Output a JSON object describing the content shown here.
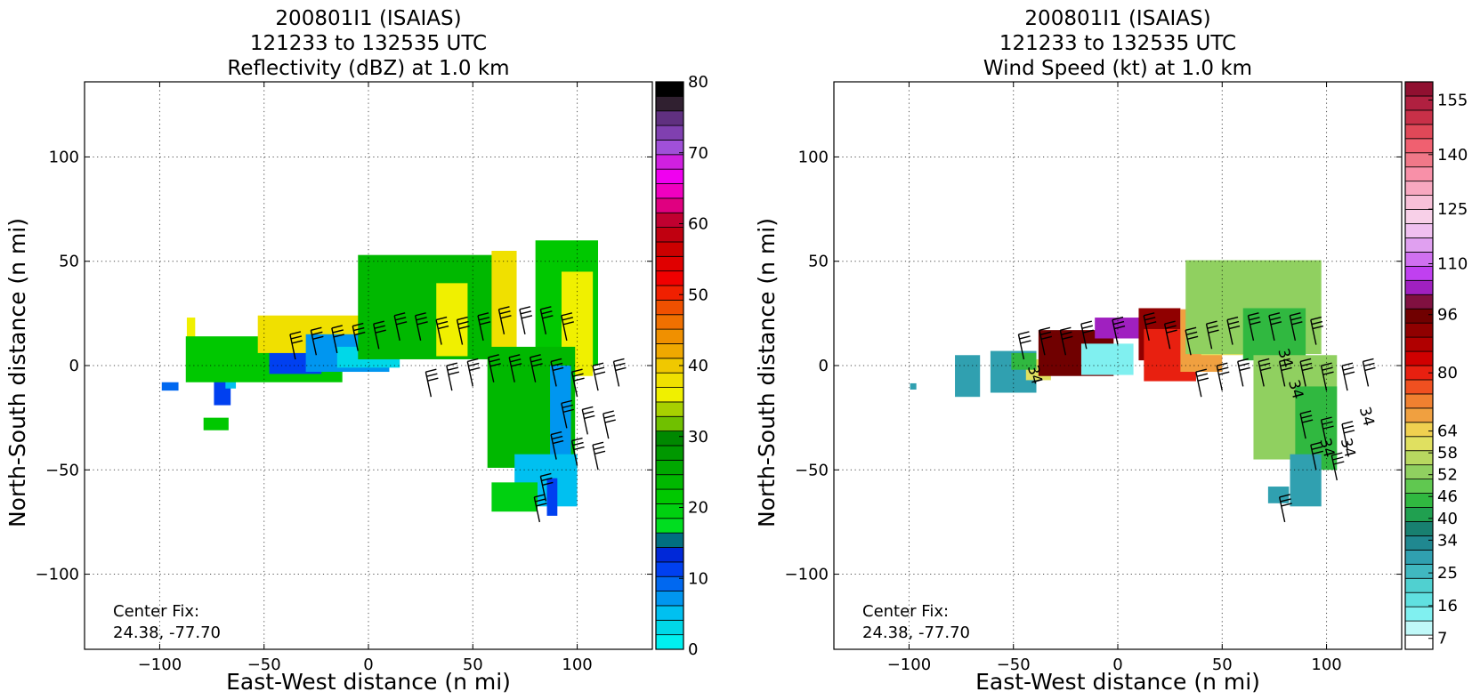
{
  "chart_data": [
    {
      "type": "heatmap",
      "title_lines": [
        "200801I1 (ISAIAS)",
        "121233 to 132535 UTC",
        "Reflectivity (dBZ) at 1.0 km"
      ],
      "xlabel": "East-West distance (n mi)",
      "ylabel": "North-South distance (n mi)",
      "xlim": [
        -136,
        136
      ],
      "ylim": [
        -136,
        136
      ],
      "xticks": [
        -100,
        -50,
        0,
        50,
        100
      ],
      "yticks": [
        -100,
        -50,
        0,
        50,
        100
      ],
      "grid": true,
      "annotation_lines": [
        "Center Fix:",
        "24.38, -77.70"
      ],
      "colorbar": {
        "min": 0,
        "max": 80,
        "tick_labels": [
          "0",
          "10",
          "20",
          "30",
          "40",
          "50",
          "60",
          "70",
          "80"
        ],
        "colors": [
          "#00f0f0",
          "#00d8e8",
          "#00c0f0",
          "#0096f0",
          "#0068f0",
          "#0040f0",
          "#0028d8",
          "#006f80",
          "#00dd20",
          "#00d010",
          "#00c800",
          "#00b800",
          "#00a800",
          "#009800",
          "#008800",
          "#70c000",
          "#a8d000",
          "#f0f000",
          "#f0e000",
          "#f0c800",
          "#f0a800",
          "#f09000",
          "#f07000",
          "#f05000",
          "#f02000",
          "#f00000",
          "#e00000",
          "#cc0000",
          "#c00010",
          "#c00030",
          "#e00080",
          "#f000c0",
          "#f000f0",
          "#d020e0",
          "#a050d8",
          "#8040b0",
          "#603080",
          "#302030",
          "#000000"
        ]
      },
      "echo_regions": [
        {
          "x": -95,
          "y": -10,
          "w": 8,
          "h": 4,
          "color": "#0068f0"
        },
        {
          "x": -85,
          "y": 17,
          "w": 4,
          "h": 12,
          "color": "#f0f000"
        },
        {
          "x": -73,
          "y": -28,
          "w": 12,
          "h": 6,
          "color": "#00c800"
        },
        {
          "x": -70,
          "y": -5,
          "w": 8,
          "h": 28,
          "color": "#0040f0"
        },
        {
          "x": -66,
          "y": 0,
          "w": 5,
          "h": 22,
          "color": "#00c0f0"
        },
        {
          "x": -50,
          "y": 3,
          "w": 75,
          "h": 22,
          "color": "#00c800"
        },
        {
          "x": -35,
          "y": 2,
          "w": 25,
          "h": 12,
          "color": "#0040f0"
        },
        {
          "x": -18,
          "y": 15,
          "w": 70,
          "h": 18,
          "color": "#f0e000"
        },
        {
          "x": -10,
          "y": 6,
          "w": 40,
          "h": 18,
          "color": "#0096f0"
        },
        {
          "x": 0,
          "y": 4,
          "w": 30,
          "h": 10,
          "color": "#00d8e8"
        },
        {
          "x": 30,
          "y": 28,
          "w": 70,
          "h": 50,
          "color": "#00b800"
        },
        {
          "x": 40,
          "y": 22,
          "w": 15,
          "h": 35,
          "color": "#f0f000"
        },
        {
          "x": 65,
          "y": 30,
          "w": 12,
          "h": 50,
          "color": "#f0e000"
        },
        {
          "x": 95,
          "y": 30,
          "w": 30,
          "h": 60,
          "color": "#00c800"
        },
        {
          "x": 100,
          "y": 20,
          "w": 15,
          "h": 50,
          "color": "#f0f000"
        },
        {
          "x": 78,
          "y": -20,
          "w": 42,
          "h": 58,
          "color": "#00b800"
        },
        {
          "x": 92,
          "y": -25,
          "w": 10,
          "h": 50,
          "color": "#0096f0"
        },
        {
          "x": 85,
          "y": -55,
          "w": 30,
          "h": 25,
          "color": "#00c0f0"
        },
        {
          "x": 70,
          "y": -63,
          "w": 22,
          "h": 14,
          "color": "#00d010"
        },
        {
          "x": 88,
          "y": -63,
          "w": 5,
          "h": 18,
          "color": "#0040f0"
        }
      ],
      "barbs": [
        {
          "x": -35,
          "y": 3
        },
        {
          "x": -25,
          "y": 5
        },
        {
          "x": -15,
          "y": 6
        },
        {
          "x": -5,
          "y": 7
        },
        {
          "x": 5,
          "y": 8
        },
        {
          "x": 15,
          "y": 12
        },
        {
          "x": 25,
          "y": 12
        },
        {
          "x": 35,
          "y": 10
        },
        {
          "x": 45,
          "y": 10
        },
        {
          "x": 55,
          "y": 12
        },
        {
          "x": 65,
          "y": 15
        },
        {
          "x": 75,
          "y": 15
        },
        {
          "x": 85,
          "y": 15
        },
        {
          "x": 95,
          "y": 12
        },
        {
          "x": 30,
          "y": -15
        },
        {
          "x": 40,
          "y": -12
        },
        {
          "x": 50,
          "y": -10
        },
        {
          "x": 60,
          "y": -8
        },
        {
          "x": 70,
          "y": -8
        },
        {
          "x": 80,
          "y": -8
        },
        {
          "x": 90,
          "y": -10
        },
        {
          "x": 100,
          "y": -15
        },
        {
          "x": 110,
          "y": -12
        },
        {
          "x": 120,
          "y": -10
        },
        {
          "x": 95,
          "y": -30
        },
        {
          "x": 105,
          "y": -33
        },
        {
          "x": 115,
          "y": -35
        },
        {
          "x": 90,
          "y": -45
        },
        {
          "x": 100,
          "y": -48
        },
        {
          "x": 110,
          "y": -50
        },
        {
          "x": 85,
          "y": -65
        },
        {
          "x": 82,
          "y": -75
        }
      ]
    },
    {
      "type": "heatmap",
      "title_lines": [
        "200801I1 (ISAIAS)",
        "121233 to 132535 UTC",
        "Wind Speed (kt) at 1.0 km"
      ],
      "xlabel": "East-West distance (n mi)",
      "ylabel": "North-South distance (n mi)",
      "xlim": [
        -136,
        136
      ],
      "ylim": [
        -136,
        136
      ],
      "xticks": [
        -100,
        -50,
        0,
        50,
        100
      ],
      "yticks": [
        -100,
        -50,
        0,
        50,
        100
      ],
      "grid": true,
      "annotation_lines": [
        "Center Fix:",
        "24.38, -77.70"
      ],
      "contour_label": "34",
      "colorbar": {
        "min": 4,
        "max": 160,
        "tick_labels": [
          "7",
          "16",
          "25",
          "34",
          "40",
          "46",
          "52",
          "58",
          "64",
          "80",
          "96",
          "110",
          "125",
          "140",
          "155"
        ],
        "tick_values": [
          7,
          16,
          25,
          34,
          40,
          46,
          52,
          58,
          64,
          80,
          96,
          110,
          125,
          140,
          155
        ],
        "colors": [
          "#ffffff",
          "#c0f8f8",
          "#80f0f0",
          "#60e0e0",
          "#50d0d0",
          "#40b8c0",
          "#30a0b0",
          "#208890",
          "#188070",
          "#20a050",
          "#30b840",
          "#60c850",
          "#90d060",
          "#b8d860",
          "#e0e060",
          "#f0d050",
          "#f0a040",
          "#f08030",
          "#f05020",
          "#e82010",
          "#d00000",
          "#b00000",
          "#900000",
          "#700000",
          "#801040",
          "#a020c0",
          "#c040f0",
          "#d070f0",
          "#e0a0f0",
          "#f0c0f0",
          "#f8d0e8",
          "#f8c0d8",
          "#f8a8c0",
          "#f890a8",
          "#f07888",
          "#f06070",
          "#e04858",
          "#c83048",
          "#b02040",
          "#901030"
        ]
      },
      "echo_regions": [
        {
          "x": -98,
          "y": -10,
          "w": 3,
          "h": 3,
          "color": "#30a0b0"
        },
        {
          "x": -72,
          "y": -5,
          "w": 12,
          "h": 20,
          "color": "#30a0b0"
        },
        {
          "x": -50,
          "y": -3,
          "w": 22,
          "h": 20,
          "color": "#30a0b0"
        },
        {
          "x": -38,
          "y": -2,
          "w": 12,
          "h": 10,
          "color": "#e0e060"
        },
        {
          "x": -45,
          "y": 2,
          "w": 12,
          "h": 8,
          "color": "#30b840"
        },
        {
          "x": -20,
          "y": 6,
          "w": 36,
          "h": 22,
          "color": "#700000"
        },
        {
          "x": 0,
          "y": 18,
          "w": 22,
          "h": 10,
          "color": "#a020c0"
        },
        {
          "x": -5,
          "y": 3,
          "w": 25,
          "h": 15,
          "color": "#80f0f0"
        },
        {
          "x": 20,
          "y": 15,
          "w": 20,
          "h": 25,
          "color": "#900000"
        },
        {
          "x": 25,
          "y": 5,
          "w": 25,
          "h": 25,
          "color": "#e82010"
        },
        {
          "x": 40,
          "y": 12,
          "w": 20,
          "h": 30,
          "color": "#f0a040"
        },
        {
          "x": 50,
          "y": 25,
          "w": 20,
          "h": 40,
          "color": "#e0e060"
        },
        {
          "x": 65,
          "y": 28,
          "w": 65,
          "h": 45,
          "color": "#90d060"
        },
        {
          "x": 75,
          "y": 15,
          "w": 30,
          "h": 25,
          "color": "#30b840"
        },
        {
          "x": 85,
          "y": -20,
          "w": 40,
          "h": 50,
          "color": "#90d060"
        },
        {
          "x": 95,
          "y": -30,
          "w": 20,
          "h": 40,
          "color": "#30b840"
        },
        {
          "x": 90,
          "y": -55,
          "w": 15,
          "h": 25,
          "color": "#30a0b0"
        },
        {
          "x": 77,
          "y": -62,
          "w": 10,
          "h": 8,
          "color": "#30a0b0"
        }
      ],
      "barbs": [
        {
          "x": -45,
          "y": 3
        },
        {
          "x": -35,
          "y": 5
        },
        {
          "x": -25,
          "y": 5
        },
        {
          "x": -15,
          "y": 8
        },
        {
          "x": 0,
          "y": 10
        },
        {
          "x": 15,
          "y": 12
        },
        {
          "x": 25,
          "y": 8
        },
        {
          "x": 35,
          "y": 5
        },
        {
          "x": 45,
          "y": 8
        },
        {
          "x": 55,
          "y": 10
        },
        {
          "x": 65,
          "y": 12
        },
        {
          "x": 75,
          "y": 12
        },
        {
          "x": 85,
          "y": 12
        },
        {
          "x": 95,
          "y": 10
        },
        {
          "x": 40,
          "y": -15
        },
        {
          "x": 50,
          "y": -12
        },
        {
          "x": 60,
          "y": -10
        },
        {
          "x": 70,
          "y": -10
        },
        {
          "x": 80,
          "y": -10
        },
        {
          "x": 90,
          "y": -10
        },
        {
          "x": 100,
          "y": -12
        },
        {
          "x": 110,
          "y": -12
        },
        {
          "x": 120,
          "y": -10
        },
        {
          "x": 90,
          "y": -35
        },
        {
          "x": 100,
          "y": -38
        },
        {
          "x": 110,
          "y": -40
        },
        {
          "x": 95,
          "y": -50
        },
        {
          "x": 105,
          "y": -55
        },
        {
          "x": 80,
          "y": -75
        }
      ],
      "contour_labels_at": [
        {
          "x": -42,
          "y": -5
        },
        {
          "x": 78,
          "y": 3
        },
        {
          "x": 83,
          "y": -12
        },
        {
          "x": 117,
          "y": -25
        },
        {
          "x": 98,
          "y": -40
        },
        {
          "x": 108,
          "y": -40
        }
      ]
    }
  ]
}
